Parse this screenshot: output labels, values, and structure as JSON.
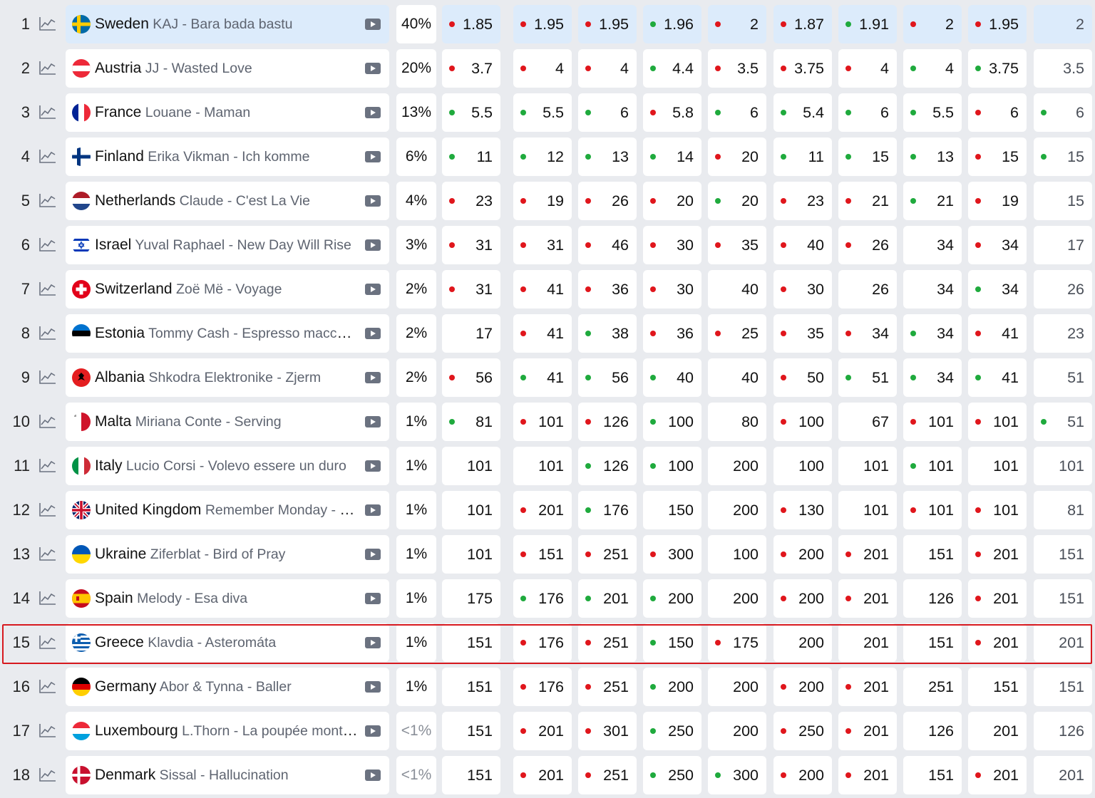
{
  "colors": {
    "up": "#e0161c",
    "down": "#1faa3d",
    "highlight_border": "#d7191f",
    "first_row_bg": "#dcebfb"
  },
  "highlighted_rank": 15,
  "rows": [
    {
      "rank": "1",
      "flag": "se",
      "country": "Sweden",
      "song": "KAJ - Bara bada bastu",
      "pct": "40%",
      "odds": [
        {
          "v": "1.85",
          "d": "red"
        },
        {
          "v": "1.95",
          "d": "red"
        },
        {
          "v": "1.95",
          "d": "red"
        },
        {
          "v": "1.96",
          "d": "green"
        },
        {
          "v": "2",
          "d": "red"
        },
        {
          "v": "1.87",
          "d": "red"
        },
        {
          "v": "1.91",
          "d": "green"
        },
        {
          "v": "2",
          "d": "red"
        },
        {
          "v": "1.95",
          "d": "red"
        },
        {
          "v": "2",
          "d": ""
        }
      ]
    },
    {
      "rank": "2",
      "flag": "at",
      "country": "Austria",
      "song": "JJ - Wasted Love",
      "pct": "20%",
      "odds": [
        {
          "v": "3.7",
          "d": "red"
        },
        {
          "v": "4",
          "d": "red"
        },
        {
          "v": "4",
          "d": "red"
        },
        {
          "v": "4.4",
          "d": "green"
        },
        {
          "v": "3.5",
          "d": "red"
        },
        {
          "v": "3.75",
          "d": "red"
        },
        {
          "v": "4",
          "d": "red"
        },
        {
          "v": "4",
          "d": "green"
        },
        {
          "v": "3.75",
          "d": "green"
        },
        {
          "v": "3.5",
          "d": ""
        }
      ]
    },
    {
      "rank": "3",
      "flag": "fr",
      "country": "France",
      "song": "Louane - Maman",
      "pct": "13%",
      "odds": [
        {
          "v": "5.5",
          "d": "green"
        },
        {
          "v": "5.5",
          "d": "green"
        },
        {
          "v": "6",
          "d": "green"
        },
        {
          "v": "5.8",
          "d": "red"
        },
        {
          "v": "6",
          "d": "green"
        },
        {
          "v": "5.4",
          "d": "green"
        },
        {
          "v": "6",
          "d": "green"
        },
        {
          "v": "5.5",
          "d": "green"
        },
        {
          "v": "6",
          "d": "red"
        },
        {
          "v": "6",
          "d": "green"
        }
      ]
    },
    {
      "rank": "4",
      "flag": "fi",
      "country": "Finland",
      "song": "Erika Vikman - Ich komme",
      "pct": "6%",
      "odds": [
        {
          "v": "11",
          "d": "green"
        },
        {
          "v": "12",
          "d": "green"
        },
        {
          "v": "13",
          "d": "green"
        },
        {
          "v": "14",
          "d": "green"
        },
        {
          "v": "20",
          "d": "red"
        },
        {
          "v": "11",
          "d": "green"
        },
        {
          "v": "15",
          "d": "green"
        },
        {
          "v": "13",
          "d": "green"
        },
        {
          "v": "15",
          "d": "red"
        },
        {
          "v": "15",
          "d": "green"
        }
      ]
    },
    {
      "rank": "5",
      "flag": "nl",
      "country": "Netherlands",
      "song": "Claude - C'est La Vie",
      "pct": "4%",
      "odds": [
        {
          "v": "23",
          "d": "red"
        },
        {
          "v": "19",
          "d": "red"
        },
        {
          "v": "26",
          "d": "red"
        },
        {
          "v": "20",
          "d": "red"
        },
        {
          "v": "20",
          "d": "green"
        },
        {
          "v": "23",
          "d": "red"
        },
        {
          "v": "21",
          "d": "red"
        },
        {
          "v": "21",
          "d": "green"
        },
        {
          "v": "19",
          "d": "red"
        },
        {
          "v": "15",
          "d": ""
        }
      ]
    },
    {
      "rank": "6",
      "flag": "il",
      "country": "Israel",
      "song": "Yuval Raphael - New Day Will Rise",
      "pct": "3%",
      "odds": [
        {
          "v": "31",
          "d": "red"
        },
        {
          "v": "31",
          "d": "red"
        },
        {
          "v": "46",
          "d": "red"
        },
        {
          "v": "30",
          "d": "red"
        },
        {
          "v": "35",
          "d": "red"
        },
        {
          "v": "40",
          "d": "red"
        },
        {
          "v": "26",
          "d": "red"
        },
        {
          "v": "34",
          "d": ""
        },
        {
          "v": "34",
          "d": "red"
        },
        {
          "v": "17",
          "d": ""
        }
      ]
    },
    {
      "rank": "7",
      "flag": "ch",
      "country": "Switzerland",
      "song": "Zoë Më - Voyage",
      "pct": "2%",
      "odds": [
        {
          "v": "31",
          "d": "red"
        },
        {
          "v": "41",
          "d": "red"
        },
        {
          "v": "36",
          "d": "red"
        },
        {
          "v": "30",
          "d": "red"
        },
        {
          "v": "40",
          "d": ""
        },
        {
          "v": "30",
          "d": "red"
        },
        {
          "v": "26",
          "d": ""
        },
        {
          "v": "34",
          "d": ""
        },
        {
          "v": "34",
          "d": "green"
        },
        {
          "v": "26",
          "d": ""
        }
      ]
    },
    {
      "rank": "8",
      "flag": "ee",
      "country": "Estonia",
      "song": "Tommy Cash - Espresso macchiato",
      "pct": "2%",
      "odds": [
        {
          "v": "17",
          "d": ""
        },
        {
          "v": "41",
          "d": "red"
        },
        {
          "v": "38",
          "d": "green"
        },
        {
          "v": "36",
          "d": "red"
        },
        {
          "v": "25",
          "d": "red"
        },
        {
          "v": "35",
          "d": "red"
        },
        {
          "v": "34",
          "d": "red"
        },
        {
          "v": "34",
          "d": "green"
        },
        {
          "v": "41",
          "d": "red"
        },
        {
          "v": "23",
          "d": ""
        }
      ]
    },
    {
      "rank": "9",
      "flag": "al",
      "country": "Albania",
      "song": "Shkodra Elektronike - Zjerm",
      "pct": "2%",
      "odds": [
        {
          "v": "56",
          "d": "red"
        },
        {
          "v": "41",
          "d": "green"
        },
        {
          "v": "56",
          "d": "green"
        },
        {
          "v": "40",
          "d": "green"
        },
        {
          "v": "40",
          "d": ""
        },
        {
          "v": "50",
          "d": "red"
        },
        {
          "v": "51",
          "d": "green"
        },
        {
          "v": "34",
          "d": "green"
        },
        {
          "v": "41",
          "d": "green"
        },
        {
          "v": "51",
          "d": ""
        }
      ]
    },
    {
      "rank": "10",
      "flag": "mt",
      "country": "Malta",
      "song": "Miriana Conte - Serving",
      "pct": "1%",
      "odds": [
        {
          "v": "81",
          "d": "green"
        },
        {
          "v": "101",
          "d": "red"
        },
        {
          "v": "126",
          "d": "red"
        },
        {
          "v": "100",
          "d": "green"
        },
        {
          "v": "80",
          "d": ""
        },
        {
          "v": "100",
          "d": "red"
        },
        {
          "v": "67",
          "d": ""
        },
        {
          "v": "101",
          "d": "red"
        },
        {
          "v": "101",
          "d": "red"
        },
        {
          "v": "51",
          "d": "green"
        }
      ]
    },
    {
      "rank": "11",
      "flag": "it",
      "country": "Italy",
      "song": "Lucio Corsi - Volevo essere un duro",
      "pct": "1%",
      "odds": [
        {
          "v": "101",
          "d": ""
        },
        {
          "v": "101",
          "d": ""
        },
        {
          "v": "126",
          "d": "green"
        },
        {
          "v": "100",
          "d": "green"
        },
        {
          "v": "200",
          "d": ""
        },
        {
          "v": "100",
          "d": ""
        },
        {
          "v": "101",
          "d": ""
        },
        {
          "v": "101",
          "d": "green"
        },
        {
          "v": "101",
          "d": ""
        },
        {
          "v": "101",
          "d": ""
        }
      ]
    },
    {
      "rank": "12",
      "flag": "gb",
      "country": "United Kingdom",
      "song": "Remember Monday - Wh…",
      "pct": "1%",
      "odds": [
        {
          "v": "101",
          "d": ""
        },
        {
          "v": "201",
          "d": "red"
        },
        {
          "v": "176",
          "d": "green"
        },
        {
          "v": "150",
          "d": ""
        },
        {
          "v": "200",
          "d": ""
        },
        {
          "v": "130",
          "d": "red"
        },
        {
          "v": "101",
          "d": ""
        },
        {
          "v": "101",
          "d": "red"
        },
        {
          "v": "101",
          "d": "red"
        },
        {
          "v": "81",
          "d": ""
        }
      ]
    },
    {
      "rank": "13",
      "flag": "ua",
      "country": "Ukraine",
      "song": "Ziferblat - Bird of Pray",
      "pct": "1%",
      "odds": [
        {
          "v": "101",
          "d": ""
        },
        {
          "v": "151",
          "d": "red"
        },
        {
          "v": "251",
          "d": "red"
        },
        {
          "v": "300",
          "d": "red"
        },
        {
          "v": "100",
          "d": ""
        },
        {
          "v": "200",
          "d": "red"
        },
        {
          "v": "201",
          "d": "red"
        },
        {
          "v": "151",
          "d": ""
        },
        {
          "v": "201",
          "d": "red"
        },
        {
          "v": "151",
          "d": ""
        }
      ]
    },
    {
      "rank": "14",
      "flag": "es",
      "country": "Spain",
      "song": "Melody - Esa diva",
      "pct": "1%",
      "odds": [
        {
          "v": "175",
          "d": ""
        },
        {
          "v": "176",
          "d": "green"
        },
        {
          "v": "201",
          "d": "green"
        },
        {
          "v": "200",
          "d": "green"
        },
        {
          "v": "200",
          "d": ""
        },
        {
          "v": "200",
          "d": "red"
        },
        {
          "v": "201",
          "d": "red"
        },
        {
          "v": "126",
          "d": ""
        },
        {
          "v": "201",
          "d": "red"
        },
        {
          "v": "151",
          "d": ""
        }
      ]
    },
    {
      "rank": "15",
      "flag": "gr",
      "country": "Greece",
      "song": "Klavdia - Asteromáta",
      "pct": "1%",
      "odds": [
        {
          "v": "151",
          "d": ""
        },
        {
          "v": "176",
          "d": "red"
        },
        {
          "v": "251",
          "d": "red"
        },
        {
          "v": "150",
          "d": "green"
        },
        {
          "v": "175",
          "d": "red"
        },
        {
          "v": "200",
          "d": ""
        },
        {
          "v": "201",
          "d": ""
        },
        {
          "v": "151",
          "d": ""
        },
        {
          "v": "201",
          "d": "red"
        },
        {
          "v": "201",
          "d": ""
        }
      ]
    },
    {
      "rank": "16",
      "flag": "de",
      "country": "Germany",
      "song": "Abor & Tynna - Baller",
      "pct": "1%",
      "odds": [
        {
          "v": "151",
          "d": ""
        },
        {
          "v": "176",
          "d": "red"
        },
        {
          "v": "251",
          "d": "red"
        },
        {
          "v": "200",
          "d": "green"
        },
        {
          "v": "200",
          "d": ""
        },
        {
          "v": "200",
          "d": "red"
        },
        {
          "v": "201",
          "d": "red"
        },
        {
          "v": "251",
          "d": ""
        },
        {
          "v": "151",
          "d": ""
        },
        {
          "v": "151",
          "d": ""
        }
      ]
    },
    {
      "rank": "17",
      "flag": "lu",
      "country": "Luxembourg",
      "song": "L.Thorn - La poupée monte…",
      "pct": "<1%",
      "odds": [
        {
          "v": "151",
          "d": ""
        },
        {
          "v": "201",
          "d": "red"
        },
        {
          "v": "301",
          "d": "red"
        },
        {
          "v": "250",
          "d": "green"
        },
        {
          "v": "200",
          "d": ""
        },
        {
          "v": "250",
          "d": "red"
        },
        {
          "v": "201",
          "d": "red"
        },
        {
          "v": "126",
          "d": ""
        },
        {
          "v": "201",
          "d": ""
        },
        {
          "v": "126",
          "d": ""
        }
      ]
    },
    {
      "rank": "18",
      "flag": "dk",
      "country": "Denmark",
      "song": "Sissal - Hallucination",
      "pct": "<1%",
      "odds": [
        {
          "v": "151",
          "d": ""
        },
        {
          "v": "201",
          "d": "red"
        },
        {
          "v": "251",
          "d": "red"
        },
        {
          "v": "250",
          "d": "green"
        },
        {
          "v": "300",
          "d": "green"
        },
        {
          "v": "200",
          "d": "red"
        },
        {
          "v": "201",
          "d": "red"
        },
        {
          "v": "151",
          "d": ""
        },
        {
          "v": "201",
          "d": "red"
        },
        {
          "v": "201",
          "d": ""
        }
      ]
    }
  ]
}
